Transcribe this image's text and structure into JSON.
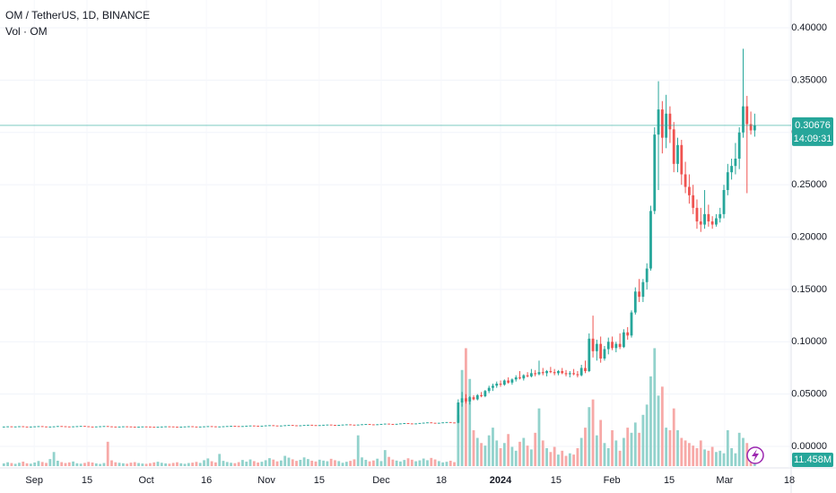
{
  "chart_data": {
    "type": "candlestick",
    "title": "OM / TetherUS, 1D, BINANCE",
    "volume_label": "Vol · OM",
    "up_color": "#26a69a",
    "down_color": "#ef5350",
    "volume_up_color": "#92d2cc",
    "volume_down_color": "#f7a9a7",
    "grid": true,
    "xlim": [
      -1,
      204
    ],
    "xticks": [
      {
        "value": 7.9,
        "label": "Sep"
      },
      {
        "value": 21.6,
        "label": "15"
      },
      {
        "value": 37.0,
        "label": "Oct"
      },
      {
        "value": 52.6,
        "label": "16"
      },
      {
        "value": 68.2,
        "label": "Nov"
      },
      {
        "value": 81.9,
        "label": "15"
      },
      {
        "value": 98.0,
        "label": "Dec"
      },
      {
        "value": 113.6,
        "label": "18"
      },
      {
        "value": 129.0,
        "label": "2024"
      },
      {
        "value": 143.4,
        "label": "15"
      },
      {
        "value": 157.9,
        "label": "Feb"
      },
      {
        "value": 172.8,
        "label": "15"
      },
      {
        "value": 187.2,
        "label": "Mar"
      },
      {
        "value": 204.0,
        "label": "18"
      }
    ],
    "ylim": [
      -0.0188,
      0.4266
    ],
    "yticks": [
      {
        "value": 0,
        "label": "0.00000"
      },
      {
        "value": 0.05,
        "label": "0.05000"
      },
      {
        "value": 0.1,
        "label": "0.10000"
      },
      {
        "value": 0.15,
        "label": "0.15000"
      },
      {
        "value": 0.2,
        "label": "0.20000"
      },
      {
        "value": 0.25,
        "label": "0.25000"
      },
      {
        "value": 0.3,
        "label": "0.30000"
      },
      {
        "value": 0.35,
        "label": "0.35000"
      },
      {
        "value": 0.4,
        "label": "0.40000"
      }
    ],
    "y2lim": [
      0,
      100
    ],
    "last_price": {
      "value": 0.30676,
      "label": "0.30676"
    },
    "countdown": "14:09:31",
    "closes_flat": [
      0.019,
      0.0192,
      0.0189,
      0.0191,
      0.0193,
      0.019,
      0.0188,
      0.019,
      0.0192,
      0.0194,
      0.0191,
      0.0189,
      0.019,
      0.0192,
      0.0195,
      0.0193,
      0.0191,
      0.019,
      0.0192,
      0.0194,
      0.0196,
      0.0193,
      0.019,
      0.0189,
      0.0191,
      0.0193,
      0.0195,
      0.0192,
      0.019,
      0.0188,
      0.019,
      0.0192,
      0.0191,
      0.0189,
      0.0187,
      0.0189,
      0.0191,
      0.019,
      0.0188,
      0.0186,
      0.0188,
      0.019,
      0.0192,
      0.0191,
      0.0189,
      0.0187,
      0.0189,
      0.0191,
      0.0193,
      0.019,
      0.0188,
      0.019,
      0.0192,
      0.0194,
      0.0192,
      0.019,
      0.0191,
      0.0193,
      0.0195,
      0.0197,
      0.0195,
      0.0193,
      0.0195,
      0.0198,
      0.02,
      0.0198,
      0.0196,
      0.0198,
      0.0201,
      0.0203,
      0.02,
      0.0198,
      0.02,
      0.0203,
      0.0205,
      0.0202,
      0.02,
      0.0202,
      0.0205,
      0.0207,
      0.0204,
      0.0202,
      0.0204,
      0.0207,
      0.0209,
      0.0206,
      0.0204,
      0.0206,
      0.0209,
      0.0211,
      0.0208,
      0.0206,
      0.0209,
      0.0212,
      0.0214,
      0.0211,
      0.0209,
      0.0212,
      0.0215,
      0.0218,
      0.0215,
      0.0213,
      0.0216,
      0.022,
      0.0223,
      0.022,
      0.0217,
      0.022,
      0.0224,
      0.0227,
      0.023,
      0.0226,
      0.0223,
      0.0226,
      0.023,
      0.0233,
      0.0229,
      0.0226
    ],
    "ohlc_rally": [
      [
        0.0226,
        0.045,
        0.0222,
        0.042
      ],
      [
        0.042,
        0.052,
        0.038,
        0.046
      ],
      [
        0.046,
        0.05,
        0.041,
        0.043
      ],
      [
        0.043,
        0.048,
        0.04,
        0.047
      ],
      [
        0.047,
        0.049,
        0.044,
        0.045
      ],
      [
        0.045,
        0.05,
        0.044,
        0.049
      ],
      [
        0.049,
        0.052,
        0.047,
        0.048
      ],
      [
        0.048,
        0.054,
        0.047,
        0.053
      ],
      [
        0.053,
        0.058,
        0.051,
        0.056
      ],
      [
        0.056,
        0.06,
        0.053,
        0.058
      ],
      [
        0.058,
        0.062,
        0.056,
        0.06
      ],
      [
        0.06,
        0.063,
        0.057,
        0.059
      ],
      [
        0.059,
        0.064,
        0.058,
        0.063
      ],
      [
        0.063,
        0.066,
        0.06,
        0.061
      ],
      [
        0.061,
        0.065,
        0.059,
        0.064
      ],
      [
        0.064,
        0.068,
        0.062,
        0.066
      ],
      [
        0.066,
        0.072,
        0.064,
        0.065
      ],
      [
        0.065,
        0.069,
        0.063,
        0.068
      ],
      [
        0.068,
        0.071,
        0.066,
        0.067
      ],
      [
        0.067,
        0.074,
        0.066,
        0.07
      ],
      [
        0.07,
        0.073,
        0.067,
        0.069
      ],
      [
        0.069,
        0.082,
        0.068,
        0.071
      ],
      [
        0.071,
        0.075,
        0.068,
        0.07
      ],
      [
        0.07,
        0.073,
        0.067,
        0.072
      ],
      [
        0.072,
        0.076,
        0.07,
        0.071
      ],
      [
        0.071,
        0.074,
        0.068,
        0.07
      ],
      [
        0.07,
        0.073,
        0.068,
        0.072
      ],
      [
        0.072,
        0.075,
        0.069,
        0.07
      ],
      [
        0.07,
        0.073,
        0.067,
        0.069
      ],
      [
        0.069,
        0.072,
        0.066,
        0.07
      ],
      [
        0.07,
        0.074,
        0.068,
        0.069
      ],
      [
        0.069,
        0.072,
        0.066,
        0.068
      ],
      [
        0.068,
        0.078,
        0.067,
        0.075
      ],
      [
        0.075,
        0.082,
        0.07,
        0.072
      ],
      [
        0.072,
        0.108,
        0.071,
        0.103
      ],
      [
        0.103,
        0.125,
        0.085,
        0.091
      ],
      [
        0.091,
        0.102,
        0.082,
        0.098
      ],
      [
        0.098,
        0.105,
        0.08,
        0.084
      ],
      [
        0.084,
        0.096,
        0.082,
        0.093
      ],
      [
        0.093,
        0.104,
        0.088,
        0.1
      ],
      [
        0.1,
        0.105,
        0.092,
        0.094
      ],
      [
        0.094,
        0.1,
        0.09,
        0.098
      ],
      [
        0.098,
        0.108,
        0.093,
        0.095
      ],
      [
        0.095,
        0.112,
        0.094,
        0.109
      ],
      [
        0.109,
        0.114,
        0.102,
        0.106
      ],
      [
        0.106,
        0.13,
        0.104,
        0.128
      ],
      [
        0.128,
        0.152,
        0.126,
        0.148
      ],
      [
        0.148,
        0.16,
        0.138,
        0.143
      ],
      [
        0.143,
        0.16,
        0.138,
        0.157
      ],
      [
        0.157,
        0.175,
        0.15,
        0.17
      ],
      [
        0.17,
        0.23,
        0.168,
        0.225
      ],
      [
        0.225,
        0.305,
        0.222,
        0.298
      ],
      [
        0.298,
        0.349,
        0.245,
        0.322
      ],
      [
        0.322,
        0.33,
        0.28,
        0.295
      ],
      [
        0.295,
        0.336,
        0.285,
        0.318
      ],
      [
        0.318,
        0.325,
        0.29,
        0.303
      ],
      [
        0.303,
        0.31,
        0.262,
        0.27
      ],
      [
        0.27,
        0.295,
        0.262,
        0.288
      ],
      [
        0.288,
        0.293,
        0.25,
        0.26
      ],
      [
        0.26,
        0.272,
        0.242,
        0.248
      ],
      [
        0.248,
        0.26,
        0.232,
        0.24
      ],
      [
        0.24,
        0.25,
        0.222,
        0.228
      ],
      [
        0.228,
        0.236,
        0.208,
        0.215
      ],
      [
        0.215,
        0.228,
        0.205,
        0.212
      ],
      [
        0.212,
        0.245,
        0.208,
        0.222
      ],
      [
        0.222,
        0.231,
        0.21,
        0.215
      ],
      [
        0.215,
        0.22,
        0.208,
        0.212
      ],
      [
        0.212,
        0.222,
        0.21,
        0.218
      ],
      [
        0.218,
        0.228,
        0.214,
        0.222
      ],
      [
        0.222,
        0.25,
        0.218,
        0.245
      ],
      [
        0.245,
        0.27,
        0.24,
        0.262
      ],
      [
        0.262,
        0.275,
        0.255,
        0.268
      ],
      [
        0.268,
        0.29,
        0.26,
        0.275
      ],
      [
        0.275,
        0.305,
        0.265,
        0.3
      ],
      [
        0.3,
        0.38,
        0.295,
        0.325
      ],
      [
        0.325,
        0.335,
        0.242,
        0.308
      ],
      [
        0.308,
        0.32,
        0.298,
        0.302
      ],
      [
        0.302,
        0.318,
        0.296,
        0.30676
      ]
    ],
    "volume": {
      "values": [
        2.1,
        3.0,
        2.4,
        1.8,
        2.6,
        3.5,
        2.2,
        1.9,
        2.8,
        4.0,
        3.2,
        2.5,
        5.5,
        11.0,
        4.2,
        3.1,
        2.4,
        2.9,
        3.6,
        2.2,
        1.9,
        2.5,
        3.3,
        2.8,
        2.1,
        1.7,
        2.4,
        19.0,
        4.5,
        3.0,
        2.6,
        2.2,
        1.9,
        2.7,
        3.1,
        2.4,
        2.0,
        1.8,
        2.3,
        2.9,
        3.4,
        2.6,
        2.1,
        1.9,
        2.5,
        3.0,
        2.2,
        1.8,
        2.4,
        2.7,
        3.3,
        2.5,
        4.6,
        6.0,
        3.8,
        2.9,
        9.5,
        4.1,
        3.2,
        2.6,
        2.3,
        3.1,
        4.8,
        3.5,
        5.2,
        3.9,
        2.8,
        3.4,
        4.6,
        6.2,
        5.1,
        3.7,
        4.4,
        8.0,
        6.6,
        5.3,
        4.1,
        4.9,
        6.8,
        5.5,
        4.2,
        3.6,
        5.0,
        4.3,
        3.8,
        5.7,
        4.6,
        3.9,
        2.6,
        3.4,
        4.1,
        5.3,
        24.0,
        6.8,
        4.9,
        3.7,
        4.4,
        5.8,
        3.9,
        12.5,
        7.2,
        5.1,
        4.3,
        3.6,
        4.8,
        6.1,
        5.0,
        3.8,
        4.5,
        5.9,
        4.6,
        6.4,
        5.2,
        3.9,
        2.9,
        3.4,
        4.2,
        3.1,
        40.0,
        75.0,
        92.0,
        68.0,
        28.0,
        22.0,
        18.0,
        16.0,
        24.0,
        30.0,
        20.0,
        14.0,
        18.0,
        25.0,
        15.0,
        12.0,
        19.0,
        22.0,
        16.0,
        13.0,
        26.0,
        45.0,
        20.0,
        14.0,
        11.0,
        15.0,
        9.0,
        12.0,
        8.0,
        10.0,
        9.0,
        14.0,
        22.0,
        30.0,
        46.0,
        52.0,
        24.0,
        36.0,
        18.0,
        14.0,
        28.0,
        20.0,
        12.0,
        22.0,
        30.0,
        26.0,
        34.0,
        26.0,
        40.0,
        48.0,
        70.0,
        92.0,
        55.0,
        62.0,
        30.0,
        28.0,
        45.0,
        28.0,
        22.0,
        20.0,
        18.0,
        16.0,
        14.0,
        20.0,
        13.0,
        12.0,
        15.0,
        11.0,
        12.0,
        10.0,
        28.0,
        14.0,
        10.0,
        26.0,
        22.0,
        18.0,
        8.0,
        11.458
      ],
      "last_label": "11.458M"
    }
  }
}
